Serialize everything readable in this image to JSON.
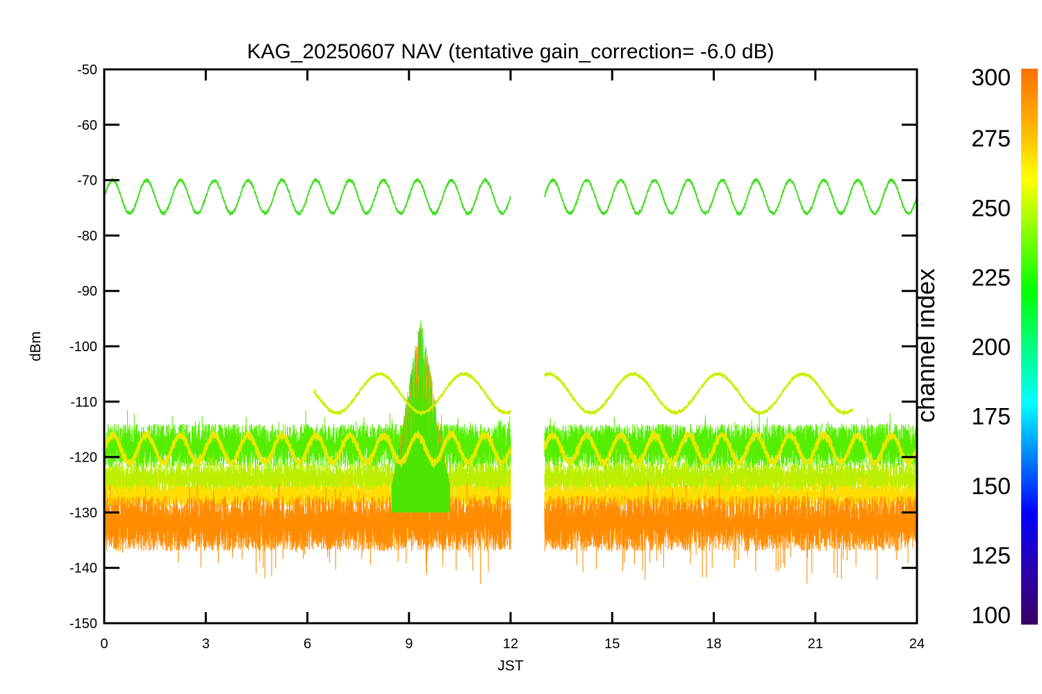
{
  "chart_data": {
    "type": "line",
    "title": "KAG_20250607 NAV (tentative gain_correction= -6.0 dB)",
    "xlabel": "JST",
    "ylabel": "dBm",
    "xlim": [
      0,
      24
    ],
    "ylim": [
      -150,
      -50
    ],
    "xticks": [
      0,
      3,
      6,
      9,
      12,
      15,
      18,
      21,
      24
    ],
    "yticks": [
      -50,
      -60,
      -70,
      -80,
      -90,
      -100,
      -110,
      -120,
      -130,
      -140,
      -150
    ],
    "data_gap": [
      12,
      13
    ],
    "colorbar": {
      "label": "channel index",
      "range": [
        100,
        300
      ],
      "ticks": [
        300,
        275,
        250,
        225,
        200,
        175,
        150,
        125,
        100
      ],
      "colormap": [
        "#3b0066",
        "#2a00b0",
        "#0000ff",
        "#0080ff",
        "#00ffff",
        "#00ff80",
        "#00ff00",
        "#80ff00",
        "#ffff00",
        "#ffb000",
        "#ff7000"
      ]
    },
    "series": [
      {
        "channel": 245,
        "color": "#44dd22",
        "kind": "sinusoid",
        "center": -73,
        "amplitude": 3,
        "period_hours": 1.0,
        "x_range": [
          0,
          24
        ]
      },
      {
        "channel": 265,
        "color": "#ccee00",
        "kind": "sinusoid",
        "center": -108.5,
        "amplitude": 3.5,
        "period_hours": 2.5,
        "x_range": [
          6.2,
          22.1
        ]
      },
      {
        "channel": 268,
        "color": "#e8e800",
        "kind": "sinusoid",
        "center": -118.5,
        "amplitude": 2.5,
        "period_hours": 1.0,
        "x_range": [
          0,
          24
        ]
      },
      {
        "channel": 250,
        "color": "#55ee00",
        "kind": "noise_band",
        "range": [
          -122,
          -114
        ],
        "x_range": [
          0,
          24
        ]
      },
      {
        "channel": 262,
        "color": "#bbee00",
        "kind": "noise_band",
        "range": [
          -127,
          -121
        ],
        "x_range": [
          0,
          24
        ]
      },
      {
        "channel": 272,
        "color": "#ffdd00",
        "kind": "noise_band",
        "range": [
          -129,
          -125
        ],
        "x_range": [
          0,
          24
        ]
      },
      {
        "channel": 290,
        "color": "#ff8c00",
        "kind": "noise_band",
        "range": [
          -137,
          -127
        ],
        "x_range": [
          0,
          24
        ]
      },
      {
        "channel": 240,
        "color": "#22cc33",
        "kind": "burst",
        "range": [
          -125,
          -94
        ],
        "x_range": [
          8.5,
          10.2
        ]
      }
    ]
  }
}
